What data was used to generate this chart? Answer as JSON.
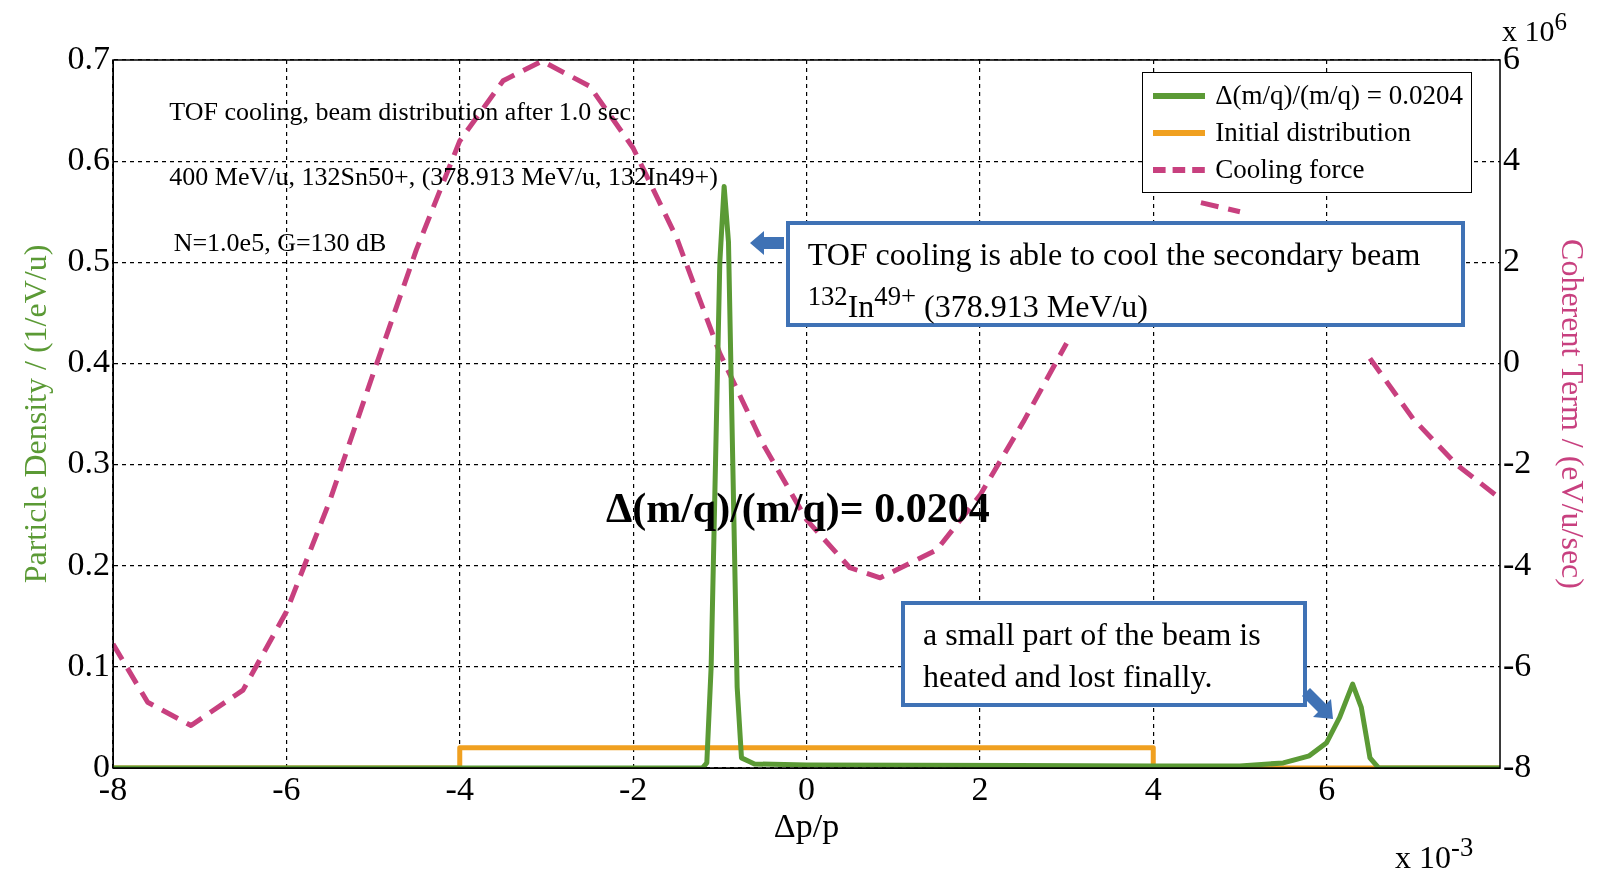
{
  "chart_data": {
    "type": "line",
    "xlabel": "Δp/p",
    "ylabel": "Particle Density / (1/eV/u)",
    "y2label": "Coherent Term / (eV/u/sec)",
    "xlim": [
      -8,
      8
    ],
    "xticks": [
      -8,
      -6,
      -4,
      -2,
      0,
      2,
      4,
      6
    ],
    "ylim": [
      0,
      0.7
    ],
    "yticks": [
      0,
      0.1,
      0.2,
      0.3,
      0.4,
      0.5,
      0.6,
      0.7
    ],
    "y2lim": [
      -8,
      6
    ],
    "y2ticks": [
      -8,
      -6,
      -4,
      -2,
      0,
      2,
      4,
      6
    ],
    "grid": true,
    "legend": "top right",
    "series": [
      {
        "name": "Δ(m/q)/(m/q) = 0.0204",
        "color": "#5b9a35",
        "line_style": "solid",
        "x": [
          -8,
          -1.2,
          -1.15,
          -1.1,
          -1.05,
          -1.0,
          -0.95,
          -0.9,
          -0.85,
          -0.8,
          -0.75,
          -0.6,
          0,
          4,
          5,
          5.5,
          5.8,
          6.0,
          6.15,
          6.3,
          6.4,
          6.5,
          6.6,
          8
        ],
        "values": [
          0,
          0,
          0.005,
          0.1,
          0.3,
          0.5,
          0.575,
          0.52,
          0.3,
          0.08,
          0.01,
          0.004,
          0.003,
          0.002,
          0.002,
          0.005,
          0.012,
          0.025,
          0.05,
          0.083,
          0.06,
          0.01,
          0,
          0
        ]
      },
      {
        "name": "Initial distribution",
        "color": "#f0a020",
        "line_style": "solid",
        "x": [
          -8,
          -4,
          -4,
          4,
          4,
          8
        ],
        "values": [
          0,
          0,
          0.02,
          0.02,
          0,
          0
        ]
      },
      {
        "name": "Cooling force",
        "color": "#c8407f",
        "line_style": "dashed",
        "axis": "y2",
        "x": [
          -8,
          -7.6,
          -7.1,
          -6.5,
          -6,
          -5.5,
          -5,
          -4.5,
          -4,
          -3.5,
          -3.05,
          -2.5,
          -2,
          -1.5,
          -1,
          -0.5,
          0,
          0.5,
          0.85,
          1.5,
          2,
          2.5,
          3,
          3.5,
          4,
          4.55,
          5,
          5.5,
          6,
          6.5,
          7,
          7.5,
          8
        ],
        "values": [
          -5.55,
          -6.7,
          -7.16,
          -6.46,
          -4.91,
          -2.72,
          -0.21,
          2.25,
          4.4,
          5.59,
          5.98,
          5.48,
          4.26,
          2.49,
          0.2,
          -1.6,
          -3.09,
          -4.04,
          -4.24,
          -3.69,
          -2.61,
          -1.16,
          0.4,
          null,
          null,
          3.18,
          3.0,
          null,
          null,
          0.1,
          -1.1,
          -2.0,
          -2.67
        ]
      }
    ],
    "annotations": [
      "TOF cooling, beam distribution after 1.0 sec",
      "400 MeV/u, 132Sn50+, (378.913 MeV/u, 132In49+)",
      "N=1.0e5, G=130 dB",
      "Δ(m/q)/(m/q)= 0.0204",
      "TOF cooling is able to cool the secondary beam $^{132}$In$^{49+}$ (378.913 MeV/u)",
      "a small part of the beam is heated and lost finally.",
      "x 10$^{6}$",
      "x 10$^{-3}$"
    ]
  }
}
